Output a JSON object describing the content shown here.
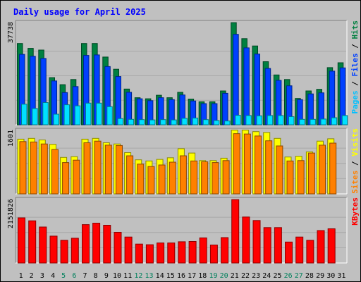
{
  "chart_data": [
    {
      "type": "bar",
      "title": "Daily usage for April 2025",
      "panel": "hits-files-pages",
      "categories": [
        "1",
        "2",
        "3",
        "4",
        "5",
        "6",
        "7",
        "8",
        "9",
        "10",
        "11",
        "12",
        "13",
        "14",
        "15",
        "16",
        "17",
        "18",
        "19",
        "20",
        "21",
        "22",
        "23",
        "24",
        "25",
        "26",
        "27",
        "28",
        "29",
        "30",
        "31"
      ],
      "weekend_days": [
        "5",
        "6",
        "12",
        "13",
        "19",
        "20",
        "26",
        "27"
      ],
      "ymax_label": "37738",
      "ylim": [
        0,
        37738
      ],
      "grid": true,
      "right_labels": [
        {
          "text": "Pages",
          "color": "#00c0ff"
        },
        {
          "text": " / ",
          "color": "#000000"
        },
        {
          "text": "Files",
          "color": "#0040ff"
        },
        {
          "text": " / ",
          "color": "#000000"
        },
        {
          "text": "Hits",
          "color": "#008040"
        }
      ],
      "series": [
        {
          "name": "Hits",
          "color": "#008040",
          "values": [
            30000,
            28200,
            27600,
            17400,
            14800,
            16700,
            30000,
            30000,
            25000,
            20500,
            13200,
            10000,
            9600,
            10900,
            10000,
            12000,
            9500,
            8500,
            8500,
            12500,
            37700,
            31800,
            29100,
            23300,
            18400,
            16700,
            9700,
            12500,
            13100,
            21100,
            22900
          ]
        },
        {
          "name": "Files",
          "color": "#0040ff",
          "values": [
            26000,
            25300,
            24500,
            16200,
            11900,
            14100,
            25600,
            25800,
            21500,
            17800,
            12000,
            9600,
            8900,
            10000,
            9300,
            11000,
            8800,
            7800,
            7800,
            11600,
            33400,
            28400,
            26100,
            20800,
            16400,
            14400,
            9300,
            11400,
            11800,
            19800,
            21000
          ]
        },
        {
          "name": "Pages",
          "color": "#00e0ff",
          "values": [
            7600,
            6000,
            8200,
            3900,
            7400,
            7000,
            8000,
            8000,
            6700,
            2300,
            2000,
            1900,
            1800,
            1900,
            1800,
            2400,
            2500,
            1900,
            1600,
            1400,
            3500,
            3400,
            3300,
            3400,
            3400,
            3000,
            2000,
            2000,
            2100,
            2600,
            3400
          ]
        }
      ]
    },
    {
      "type": "bar",
      "panel": "visits-sites",
      "categories": [
        "1",
        "2",
        "3",
        "4",
        "5",
        "6",
        "7",
        "8",
        "9",
        "10",
        "11",
        "12",
        "13",
        "14",
        "15",
        "16",
        "17",
        "18",
        "19",
        "20",
        "21",
        "22",
        "23",
        "24",
        "25",
        "26",
        "27",
        "28",
        "29",
        "30",
        "31"
      ],
      "ymax_label": "1601",
      "ylim": [
        0,
        1601
      ],
      "grid": true,
      "right_labels": [
        {
          "text": "Sites",
          "color": "#ff8000"
        },
        {
          "text": " / ",
          "color": "#000000"
        },
        {
          "text": "Visits",
          "color": "#ffff00"
        }
      ],
      "series": [
        {
          "name": "Visits",
          "color": "#ffff00",
          "values": [
            1380,
            1400,
            1360,
            1250,
            920,
            940,
            1380,
            1400,
            1290,
            1260,
            1040,
            860,
            830,
            870,
            910,
            1140,
            1030,
            840,
            840,
            900,
            1610,
            1610,
            1570,
            1550,
            1400,
            930,
            950,
            1060,
            1330,
            1390,
            0
          ]
        },
        {
          "name": "Sites",
          "color": "#ff8000",
          "values": [
            1320,
            1310,
            1260,
            1120,
            790,
            850,
            1290,
            1330,
            1230,
            1220,
            960,
            750,
            690,
            730,
            800,
            960,
            830,
            810,
            790,
            840,
            1520,
            1510,
            1460,
            1340,
            1210,
            830,
            840,
            1030,
            1230,
            1280,
            0
          ]
        }
      ]
    },
    {
      "type": "bar",
      "panel": "kbytes",
      "categories": [
        "1",
        "2",
        "3",
        "4",
        "5",
        "6",
        "7",
        "8",
        "9",
        "10",
        "11",
        "12",
        "13",
        "14",
        "15",
        "16",
        "17",
        "18",
        "19",
        "20",
        "21",
        "22",
        "23",
        "24",
        "25",
        "26",
        "27",
        "28",
        "29",
        "30",
        "31"
      ],
      "ymax_label": "2151826",
      "ylim": [
        0,
        2151826
      ],
      "grid": true,
      "right_labels": [
        {
          "text": "KBytes",
          "color": "#ff0000"
        }
      ],
      "series": [
        {
          "name": "KBytes",
          "color": "#ff0000",
          "values": [
            1530000,
            1430000,
            1220000,
            910000,
            770000,
            840000,
            1300000,
            1350000,
            1280000,
            1040000,
            880000,
            640000,
            620000,
            680000,
            680000,
            720000,
            730000,
            850000,
            610000,
            860000,
            2150000,
            1560000,
            1440000,
            1200000,
            1200000,
            710000,
            880000,
            770000,
            1100000,
            1160000,
            0
          ]
        }
      ]
    }
  ]
}
